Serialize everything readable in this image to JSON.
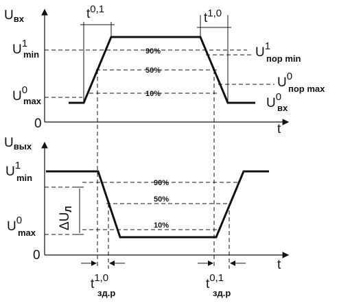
{
  "top": {
    "y_axis_label": "U",
    "y_axis_sub": "вх",
    "x_axis_label": "t",
    "origin": "0",
    "u_min_1": {
      "main": "U",
      "sup": "1",
      "sub": "min"
    },
    "u_max_0": {
      "main": "U",
      "sup": "0",
      "sub": "max"
    },
    "u_por_min_1": {
      "main": "U",
      "sup": "1",
      "sub": "пор min"
    },
    "u_por_max_0": {
      "main": "U",
      "sup": "0",
      "sub": "пор max"
    },
    "u_vx_0": {
      "main": "U",
      "sup": "0",
      "sub": "вх"
    },
    "t01": {
      "main": "t",
      "sup": "0,1"
    },
    "t10": {
      "main": "t",
      "sup": "1,0"
    },
    "pct_90": "90%",
    "pct_50": "50%",
    "pct_10": "10%"
  },
  "bottom": {
    "y_axis_label": "U",
    "y_axis_sub": "вых",
    "x_axis_label": "t",
    "origin": "0",
    "u_min_1": {
      "main": "U",
      "sup": "1",
      "sub": "min"
    },
    "u_max_0": {
      "main": "U",
      "sup": "0",
      "sub": "max"
    },
    "delta_ul": "ΔU",
    "delta_ul_sub": "Л",
    "pct_90": "90%",
    "pct_50": "50%",
    "pct_10": "10%",
    "tzd10": {
      "main": "t",
      "sup": "1,0",
      "sub": "зд.р"
    },
    "tzd01": {
      "main": "t",
      "sup": "0,1",
      "sub": "зд.р"
    }
  }
}
